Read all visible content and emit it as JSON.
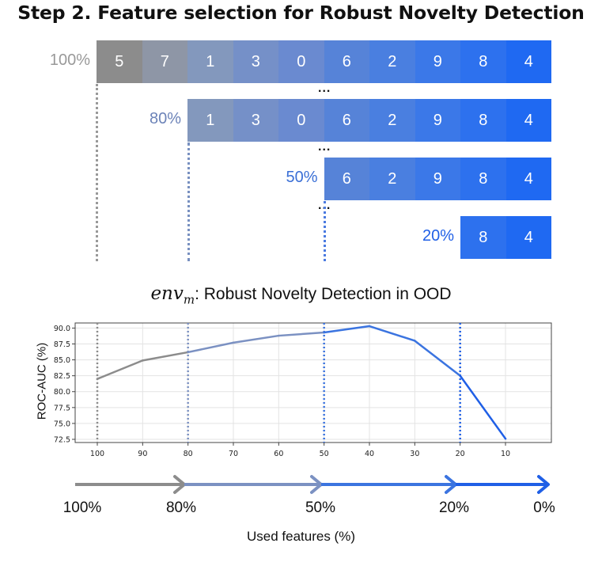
{
  "title": "Step 2. Feature selection for Robust Novelty Detection",
  "rows": [
    {
      "label": "100%",
      "label_color": "#999999",
      "cells": [
        "5",
        "7",
        "1",
        "3",
        "0",
        "6",
        "2",
        "9",
        "8",
        "4"
      ]
    },
    {
      "label": "80%",
      "label_color": "#6c83b8",
      "cells": [
        "1",
        "3",
        "0",
        "6",
        "2",
        "9",
        "8",
        "4"
      ]
    },
    {
      "label": "50%",
      "label_color": "#3a6fd6",
      "cells": [
        "6",
        "2",
        "9",
        "8",
        "4"
      ]
    },
    {
      "label": "20%",
      "label_color": "#1f5fe6",
      "cells": [
        "8",
        "4"
      ]
    }
  ],
  "cell_colors": [
    "#8c8c8c",
    "#8e96a6",
    "#8398bd",
    "#7590c8",
    "#6a8ad0",
    "#5683d8",
    "#4a7fe0",
    "#3b78e8",
    "#2d71ee",
    "#1f69f2"
  ],
  "ellipsis": "...",
  "env_title": {
    "math_base": "env",
    "math_sub": "m",
    "text": ": Robust Novelty Detection in OOD"
  },
  "chart_data": {
    "type": "line",
    "ylabel": "ROC-AUC (%)",
    "x": [
      100,
      90,
      80,
      70,
      60,
      50,
      40,
      30,
      20,
      10
    ],
    "values": [
      82.0,
      84.9,
      86.2,
      87.7,
      88.8,
      89.3,
      90.3,
      88.0,
      82.5,
      72.6
    ],
    "ylim": [
      72.0,
      90.8
    ],
    "yticks": [
      "72.5",
      "75.0",
      "77.5",
      "80.0",
      "82.5",
      "85.0",
      "87.5",
      "90.0"
    ],
    "xticks": [
      "100",
      "90",
      "80",
      "70",
      "60",
      "50",
      "40",
      "30",
      "20",
      "10"
    ],
    "grid": true,
    "markers": [
      100,
      80,
      50,
      20
    ],
    "colors": {
      "gray": "#8c8c8c",
      "slate": "#7b91c2",
      "blue": "#3b74e0",
      "bright": "#1f5fe6"
    }
  },
  "arrow_labels": [
    "100%",
    "80%",
    "50%",
    "20%",
    "0%"
  ],
  "xlabel": "Used features (%)"
}
